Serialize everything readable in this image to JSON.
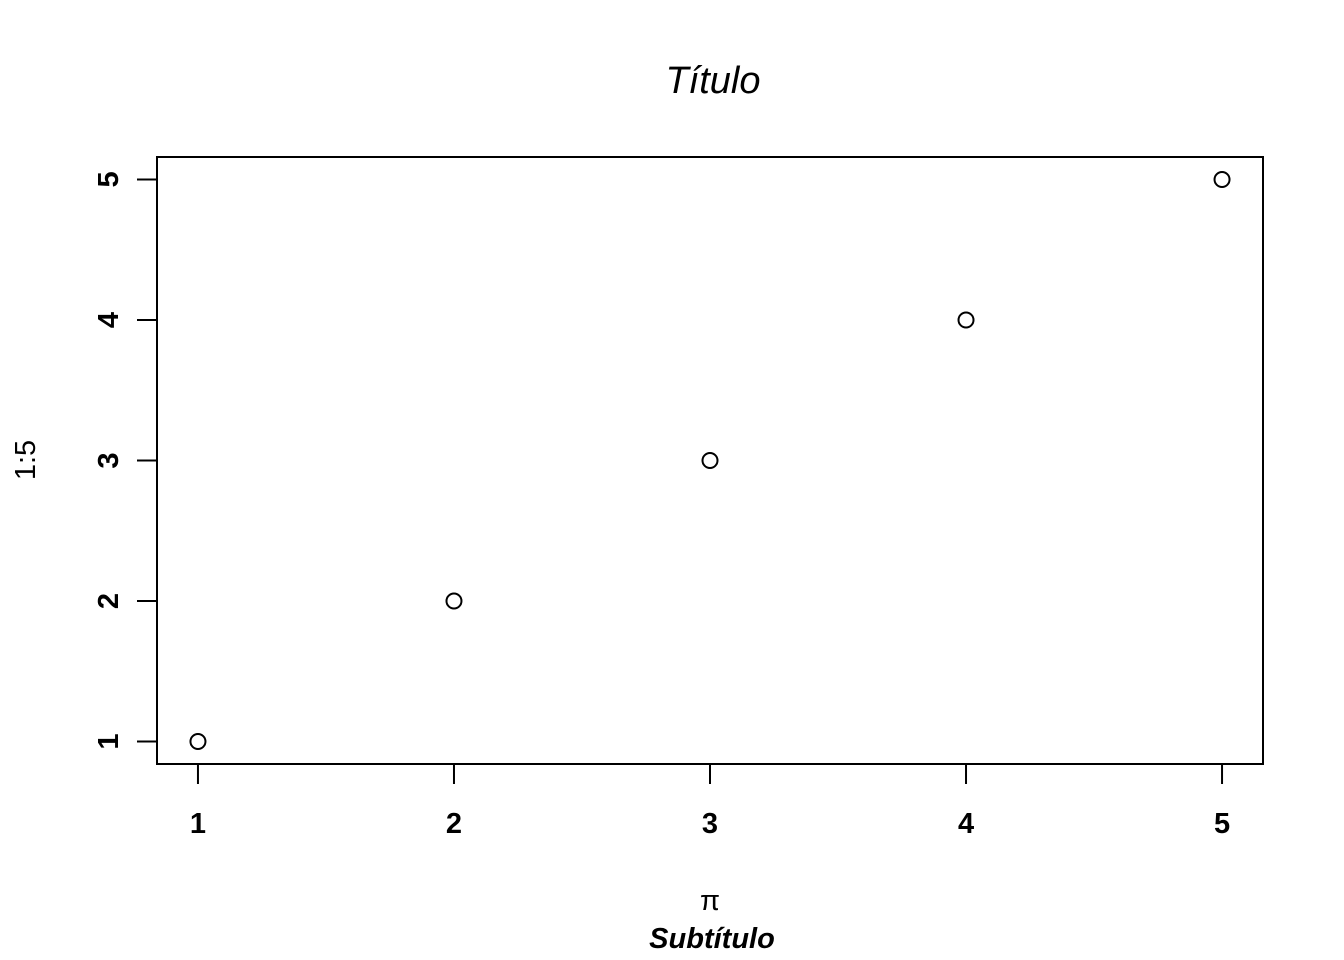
{
  "chart_data": {
    "type": "scatter",
    "title": "Título",
    "subtitle": "Subtítulo",
    "xlabel": "π",
    "ylabel": "1:5",
    "x": [
      1,
      2,
      3,
      4,
      5
    ],
    "y": [
      1,
      2,
      3,
      4,
      5
    ],
    "xlim": [
      0.84,
      5.16
    ],
    "ylim": [
      0.84,
      5.16
    ],
    "xticks": [
      "1",
      "2",
      "3",
      "4",
      "5"
    ],
    "yticks": [
      "1",
      "2",
      "3",
      "4",
      "5"
    ],
    "grid": false,
    "legend": "none",
    "marker": "open-circle",
    "colors": {
      "point": "#000000",
      "frame": "#000000"
    }
  }
}
